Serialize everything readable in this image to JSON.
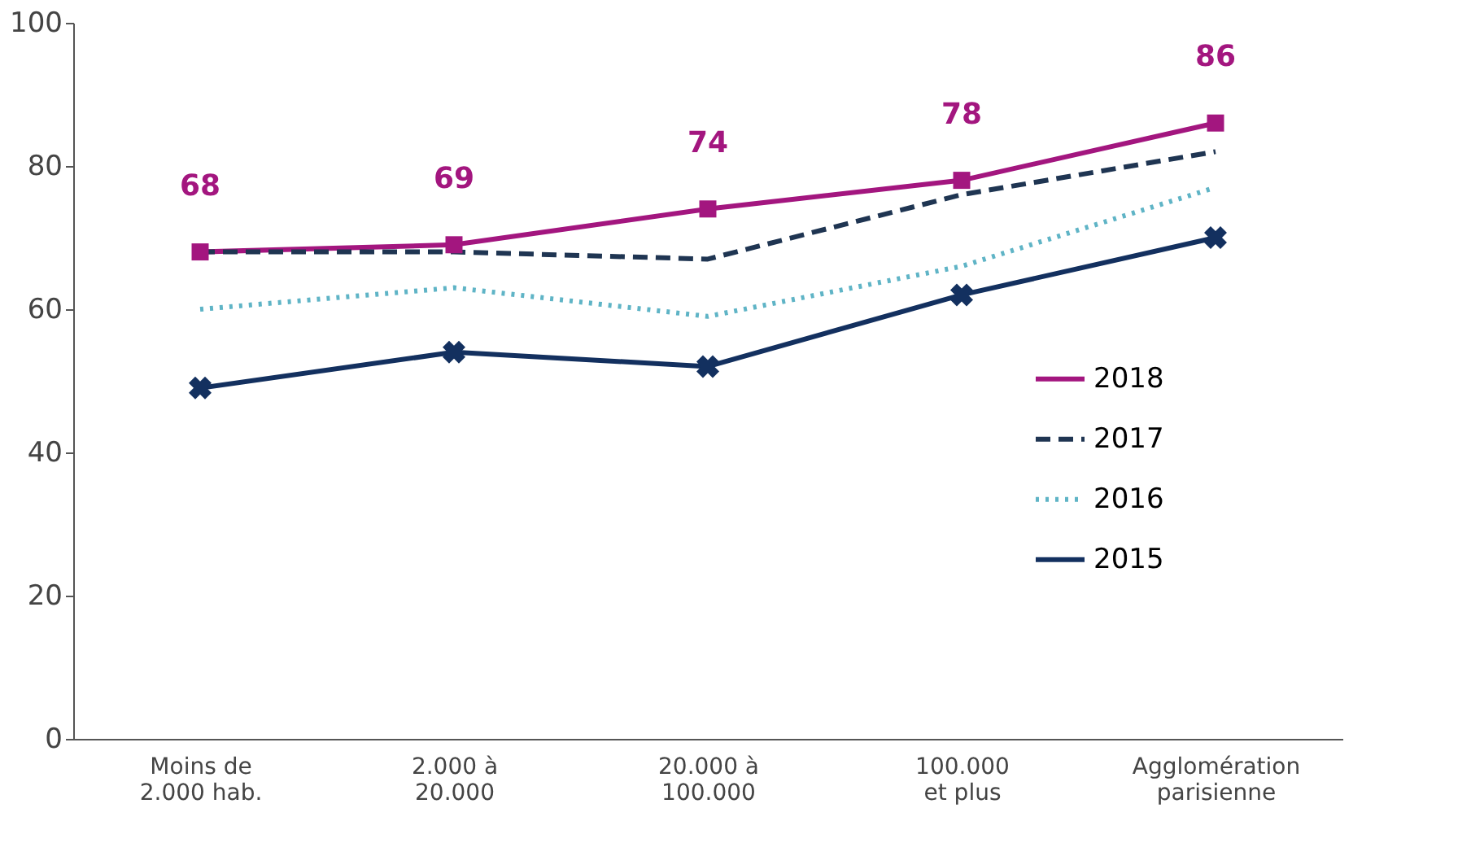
{
  "chart_data": {
    "type": "line",
    "categories": [
      "Moins de\n2.000 hab.",
      "2.000 à\n20.000",
      "20.000 à\n100.000",
      "100.000\net plus",
      "Agglomération\nparisienne"
    ],
    "series": [
      {
        "name": "2018",
        "color": "#a3167f",
        "values": [
          68,
          69,
          74,
          78,
          86
        ],
        "marker": "square",
        "line_style": "solid",
        "value_labels": [
          "68",
          "69",
          "74",
          "78",
          "86"
        ]
      },
      {
        "name": "2017",
        "color": "#1f3552",
        "values": [
          68,
          68,
          67,
          76,
          82
        ],
        "marker": "none",
        "line_style": "dashed"
      },
      {
        "name": "2016",
        "color": "#5fb4c6",
        "values": [
          60,
          63,
          59,
          66,
          77
        ],
        "marker": "none",
        "line_style": "dotted"
      },
      {
        "name": "2015",
        "color": "#13305f",
        "values": [
          49,
          54,
          52,
          62,
          70
        ],
        "marker": "cross",
        "line_style": "solid"
      }
    ],
    "ylim": [
      0,
      100
    ],
    "yticks": [
      0,
      20,
      40,
      60,
      80,
      100
    ],
    "grid": false,
    "legend": "right"
  }
}
